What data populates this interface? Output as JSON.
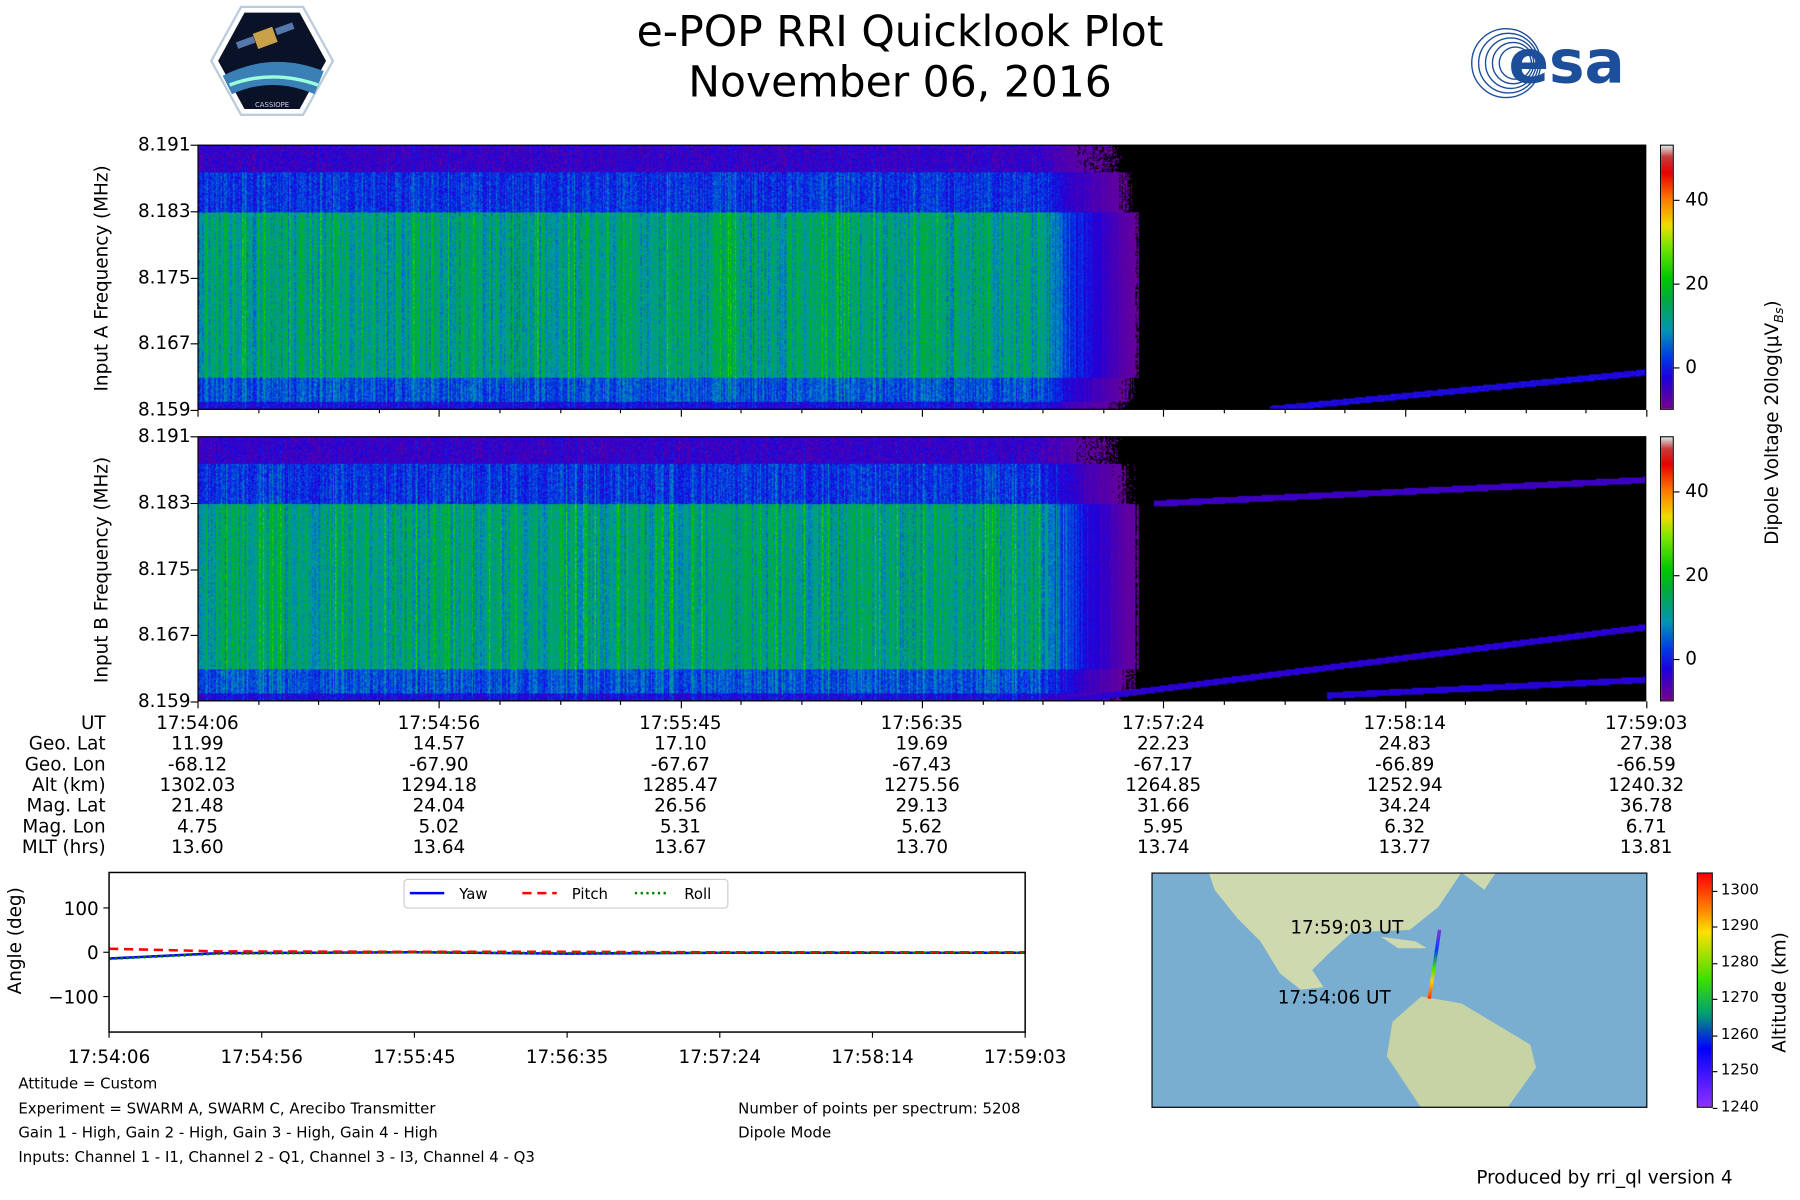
{
  "header": {
    "title": "e-POP RRI Quicklook Plot",
    "date": "November 06, 2016",
    "left_logo": "CASSIOPE",
    "right_logo": "esa"
  },
  "spectrogram": {
    "panels": [
      {
        "ylabel": "Input A Frequency (MHz)"
      },
      {
        "ylabel": "Input B Frequency (MHz)"
      }
    ],
    "yticks": [
      "8.191",
      "8.183",
      "8.175",
      "8.167",
      "8.159"
    ],
    "colorbar": {
      "label": "Dipole Voltage 20log(μV",
      "label_sub": "Bs",
      "label_end": ")",
      "ticks": [
        "40",
        "20",
        "0"
      ],
      "range": [
        -10,
        53
      ]
    }
  },
  "ephemeris": {
    "labels": [
      "UT",
      "Geo. Lat",
      "Geo. Lon",
      "Alt (km)",
      "Mag. Lat",
      "Mag. Lon",
      "MLT (hrs)"
    ],
    "columns": [
      [
        "17:54:06",
        "11.99",
        "-68.12",
        "1302.03",
        "21.48",
        "4.75",
        "13.60"
      ],
      [
        "17:54:56",
        "14.57",
        "-67.90",
        "1294.18",
        "24.04",
        "5.02",
        "13.64"
      ],
      [
        "17:55:45",
        "17.10",
        "-67.67",
        "1285.47",
        "26.56",
        "5.31",
        "13.67"
      ],
      [
        "17:56:35",
        "19.69",
        "-67.43",
        "1275.56",
        "29.13",
        "5.62",
        "13.70"
      ],
      [
        "17:57:24",
        "22.23",
        "-67.17",
        "1264.85",
        "31.66",
        "5.95",
        "13.74"
      ],
      [
        "17:58:14",
        "24.83",
        "-66.89",
        "1252.94",
        "34.24",
        "6.32",
        "13.77"
      ],
      [
        "17:59:03",
        "27.38",
        "-66.59",
        "1240.32",
        "36.78",
        "6.71",
        "13.81"
      ]
    ]
  },
  "chart_data": [
    {
      "type": "heatmap",
      "title": "Input A",
      "ylabel": "Input A Frequency (MHz)",
      "ylim": [
        8.159,
        8.191
      ],
      "xlim": [
        "17:54:06",
        "17:59:03"
      ],
      "zlim": [
        -10,
        53
      ],
      "zlabel": "Dipole Voltage 20log(μV_Bs)"
    },
    {
      "type": "heatmap",
      "title": "Input B",
      "ylabel": "Input B Frequency (MHz)",
      "ylim": [
        8.159,
        8.191
      ],
      "xlim": [
        "17:54:06",
        "17:59:03"
      ],
      "zlim": [
        -10,
        53
      ],
      "zlabel": "Dipole Voltage 20log(μV_Bs)"
    },
    {
      "type": "line",
      "ylabel": "Angle (deg)",
      "ylim": [
        -180,
        180
      ],
      "yticks": [
        "100",
        "0",
        "−100"
      ],
      "ytick_values": [
        100,
        0,
        -100
      ],
      "x": [
        "17:54:06",
        "17:54:56",
        "17:55:45",
        "17:56:35",
        "17:57:24",
        "17:58:14",
        "17:59:03"
      ],
      "legend": "top-center",
      "series": [
        {
          "name": "Yaw",
          "color": "#0000ff",
          "style": "solid",
          "values": [
            -14,
            -2,
            0,
            -3,
            -1,
            -1,
            -1
          ]
        },
        {
          "name": "Pitch",
          "color": "#ff0000",
          "style": "dashed",
          "values": [
            8,
            2,
            1,
            1,
            0,
            0,
            0
          ]
        },
        {
          "name": "Roll",
          "color": "#008000",
          "style": "dotted",
          "values": [
            -15,
            -3,
            0,
            -2,
            -1,
            -1,
            -1
          ]
        }
      ]
    }
  ],
  "map": {
    "start_label": "17:54:06 UT",
    "end_label": "17:59:03 UT",
    "colorbar_label": "Altitude (km)",
    "colorbar_ticks": [
      "1300",
      "1290",
      "1280",
      "1270",
      "1260",
      "1250",
      "1240"
    ],
    "colorbar_range": [
      1240,
      1305
    ]
  },
  "info": {
    "attitude": "Attitude = Custom",
    "experiment": "Experiment = SWARM A, SWARM C, Arecibo Transmitter",
    "gain": "Gain 1 - High, Gain 2 - High, Gain 3 - High, Gain 4 - High",
    "inputs": "Inputs: Channel 1 - I1, Channel 2 - Q1, Channel 3 - I3, Channel 4 - Q3",
    "points": "Number of points per spectrum: 5208",
    "mode": "Dipole Mode",
    "produced": "Produced by rri_ql version 4"
  }
}
